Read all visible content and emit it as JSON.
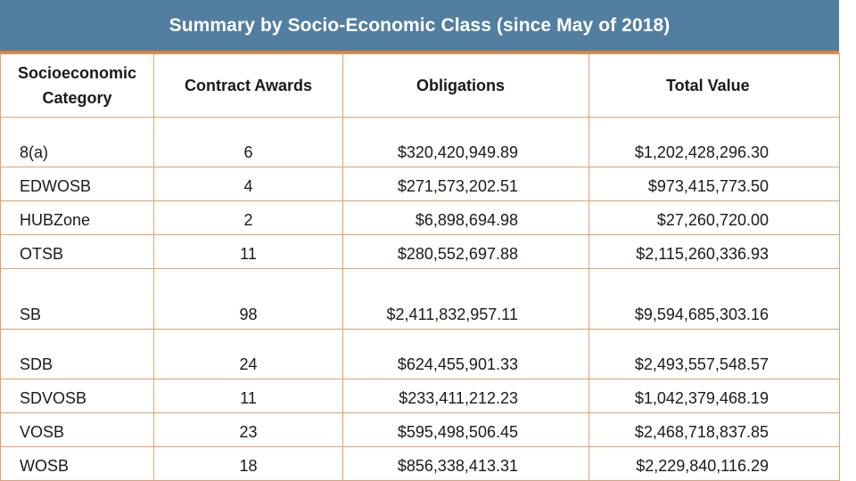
{
  "title": "Summary by Socio-Economic Class (since May of 2018)",
  "headers": {
    "category_line1": "Socioeconomic",
    "category_line2": "Category",
    "awards": "Contract Awards",
    "obligations": "Obligations",
    "total": "Total Value"
  },
  "rows": [
    {
      "category": "8(a)",
      "awards": "6",
      "obligations": "$320,420,949.89",
      "total": "$1,202,428,296.30"
    },
    {
      "category": "EDWOSB",
      "awards": "4",
      "obligations": "$271,573,202.51",
      "total": "$973,415,773.50"
    },
    {
      "category": "HUBZone",
      "awards": "2",
      "obligations": "$6,898,694.98",
      "total": "$27,260,720.00"
    },
    {
      "category": "OTSB",
      "awards": "11",
      "obligations": "$280,552,697.88",
      "total": "$2,115,260,336.93"
    },
    {
      "category": "SB",
      "awards": "98",
      "obligations": "$2,411,832,957.11",
      "total": "$9,594,685,303.16"
    },
    {
      "category": "SDB",
      "awards": "24",
      "obligations": "$624,455,901.33",
      "total": "$2,493,557,548.57"
    },
    {
      "category": "SDVOSB",
      "awards": "11",
      "obligations": "$233,411,212.23",
      "total": "$1,042,379,468.19"
    },
    {
      "category": "VOSB",
      "awards": "23",
      "obligations": "$595,498,506.45",
      "total": "$2,468,718,837.85"
    },
    {
      "category": "WOSB",
      "awards": "18",
      "obligations": "$856,338,413.31",
      "total": "$2,229,840,116.29"
    }
  ]
}
